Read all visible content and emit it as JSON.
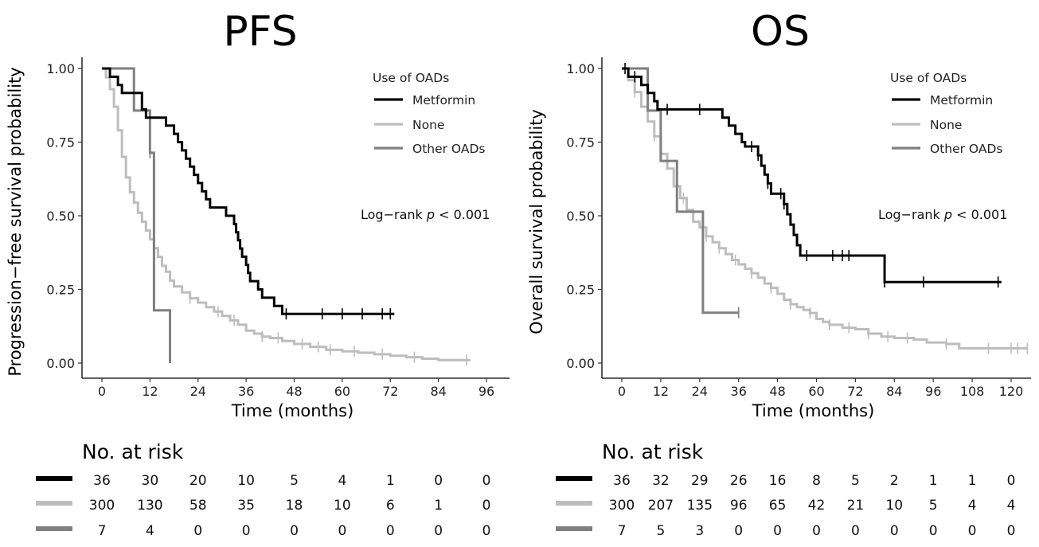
{
  "chart_data": [
    {
      "type": "line",
      "title": "PFS",
      "xlabel": "Time (months)",
      "ylabel": "Progression−free survival probability",
      "xlim": [
        0,
        96
      ],
      "ylim": [
        0,
        1
      ],
      "x_ticks": [
        0,
        12,
        24,
        36,
        48,
        60,
        72,
        84,
        96
      ],
      "x_tick_labels": [
        "0",
        "12",
        "24",
        "36",
        "48",
        "60",
        "72",
        "84",
        "96"
      ],
      "y_ticks": [
        0,
        0.25,
        0.5,
        0.75,
        1
      ],
      "y_tick_labels": [
        "0.00",
        "0.25",
        "0.50",
        "0.75",
        "1.00"
      ],
      "grid": false,
      "legend": {
        "title": "Use of OADs",
        "position": "top-right",
        "entries": [
          "Metformin",
          "None",
          "Other OADs"
        ]
      },
      "annotation_prefix": "Log−rank ",
      "annotation_p": "p",
      "annotation_suffix": " < 0.001",
      "series": [
        {
          "name": "Metformin",
          "color": "#000000",
          "points": [
            [
              0,
              1.0
            ],
            [
              2,
              0.972
            ],
            [
              4,
              0.944
            ],
            [
              5,
              0.917
            ],
            [
              10,
              0.861
            ],
            [
              11,
              0.833
            ],
            [
              16,
              0.806
            ],
            [
              18,
              0.778
            ],
            [
              19,
              0.75
            ],
            [
              20,
              0.722
            ],
            [
              21,
              0.694
            ],
            [
              22,
              0.667
            ],
            [
              23,
              0.639
            ],
            [
              24,
              0.611
            ],
            [
              25,
              0.583
            ],
            [
              26,
              0.556
            ],
            [
              27,
              0.528
            ],
            [
              31,
              0.5
            ],
            [
              33,
              0.472
            ],
            [
              33.5,
              0.444
            ],
            [
              34,
              0.417
            ],
            [
              34.5,
              0.389
            ],
            [
              35,
              0.361
            ],
            [
              36,
              0.333
            ],
            [
              36.5,
              0.306
            ],
            [
              37,
              0.278
            ],
            [
              39,
              0.25
            ],
            [
              40,
              0.222
            ],
            [
              43,
              0.194
            ],
            [
              45,
              0.167
            ],
            [
              73,
              0.167
            ]
          ],
          "censor_x": [
            46,
            55,
            60,
            65,
            70,
            72
          ]
        },
        {
          "name": "None",
          "color": "#bdbdbd",
          "points": [
            [
              0,
              1.0
            ],
            [
              1,
              0.97
            ],
            [
              2,
              0.93
            ],
            [
              3,
              0.87
            ],
            [
              4,
              0.79
            ],
            [
              5,
              0.7
            ],
            [
              6,
              0.63
            ],
            [
              7,
              0.58
            ],
            [
              8,
              0.545
            ],
            [
              9,
              0.51
            ],
            [
              10,
              0.48
            ],
            [
              11,
              0.45
            ],
            [
              12,
              0.42
            ],
            [
              13,
              0.39
            ],
            [
              14,
              0.36
            ],
            [
              15,
              0.33
            ],
            [
              16,
              0.31
            ],
            [
              17,
              0.28
            ],
            [
              18,
              0.26
            ],
            [
              20,
              0.24
            ],
            [
              22,
              0.22
            ],
            [
              24,
              0.205
            ],
            [
              26,
              0.19
            ],
            [
              28,
              0.175
            ],
            [
              30,
              0.16
            ],
            [
              32,
              0.145
            ],
            [
              34,
              0.13
            ],
            [
              36,
              0.11
            ],
            [
              38,
              0.1
            ],
            [
              40,
              0.09
            ],
            [
              42,
              0.085
            ],
            [
              45,
              0.075
            ],
            [
              48,
              0.065
            ],
            [
              52,
              0.055
            ],
            [
              56,
              0.045
            ],
            [
              60,
              0.04
            ],
            [
              64,
              0.035
            ],
            [
              68,
              0.03
            ],
            [
              72,
              0.025
            ],
            [
              76,
              0.02
            ],
            [
              80,
              0.015
            ],
            [
              84,
              0.01
            ],
            [
              92,
              0.01
            ]
          ],
          "censor_x": [
            22,
            29,
            33,
            40,
            44,
            50,
            54,
            57,
            63,
            70,
            78,
            91
          ]
        },
        {
          "name": "Other OADs",
          "color": "#7f7f7f",
          "points": [
            [
              0,
              1.0
            ],
            [
              8,
              1.0
            ],
            [
              8,
              0.857
            ],
            [
              12,
              0.857
            ],
            [
              12,
              0.714
            ],
            [
              13,
              0.714
            ],
            [
              13,
              0.179
            ],
            [
              17,
              0.179
            ],
            [
              17,
              0.0
            ]
          ],
          "censor_x": [
            12
          ]
        }
      ],
      "risk_table": {
        "title": "No. at risk",
        "times": [
          0,
          12,
          24,
          36,
          48,
          60,
          72,
          84,
          96
        ],
        "rows": [
          {
            "name": "Metformin",
            "color": "#000000",
            "values": [
              36,
              30,
              20,
              10,
              5,
              4,
              1,
              0,
              0
            ]
          },
          {
            "name": "None",
            "color": "#bdbdbd",
            "values": [
              300,
              130,
              58,
              35,
              18,
              10,
              6,
              1,
              0
            ]
          },
          {
            "name": "Other OADs",
            "color": "#7f7f7f",
            "values": [
              7,
              4,
              0,
              0,
              0,
              0,
              0,
              0,
              0
            ]
          }
        ]
      }
    },
    {
      "type": "line",
      "title": "OS",
      "xlabel": "Time (months)",
      "ylabel": "Overall survival probability",
      "xlim": [
        0,
        120
      ],
      "ylim": [
        0,
        1
      ],
      "x_ticks": [
        0,
        12,
        24,
        36,
        48,
        60,
        72,
        84,
        96,
        108,
        120
      ],
      "x_tick_labels": [
        "0",
        "12",
        "24",
        "36",
        "48",
        "60",
        "72",
        "84",
        "96",
        "108",
        "120"
      ],
      "y_ticks": [
        0,
        0.25,
        0.5,
        0.75,
        1
      ],
      "y_tick_labels": [
        "0.00",
        "0.25",
        "0.50",
        "0.75",
        "1.00"
      ],
      "grid": false,
      "legend": {
        "title": "Use of OADs",
        "position": "top-right",
        "entries": [
          "Metformin",
          "None",
          "Other OADs"
        ]
      },
      "annotation_prefix": "Log−rank ",
      "annotation_p": "p",
      "annotation_suffix": " < 0.001",
      "series": [
        {
          "name": "Metformin",
          "color": "#000000",
          "points": [
            [
              0,
              1.0
            ],
            [
              2,
              0.972
            ],
            [
              6,
              0.944
            ],
            [
              8,
              0.917
            ],
            [
              10,
              0.889
            ],
            [
              11,
              0.861
            ],
            [
              30,
              0.861
            ],
            [
              31,
              0.833
            ],
            [
              33,
              0.806
            ],
            [
              35,
              0.778
            ],
            [
              37,
              0.75
            ],
            [
              38,
              0.735
            ],
            [
              42,
              0.705
            ],
            [
              43,
              0.67
            ],
            [
              44,
              0.64
            ],
            [
              45,
              0.61
            ],
            [
              46,
              0.575
            ],
            [
              50,
              0.54
            ],
            [
              51,
              0.505
            ],
            [
              52,
              0.47
            ],
            [
              53,
              0.435
            ],
            [
              54,
              0.4
            ],
            [
              55,
              0.365
            ],
            [
              80,
              0.365
            ],
            [
              81,
              0.275
            ],
            [
              117,
              0.275
            ]
          ],
          "censor_x": [
            1,
            4,
            14,
            24,
            40,
            42,
            45,
            49,
            50,
            57,
            65,
            68,
            70,
            81,
            93,
            116
          ]
        },
        {
          "name": "None",
          "color": "#bdbdbd",
          "points": [
            [
              0,
              1.0
            ],
            [
              2,
              0.96
            ],
            [
              4,
              0.92
            ],
            [
              6,
              0.87
            ],
            [
              8,
              0.82
            ],
            [
              10,
              0.77
            ],
            [
              12,
              0.71
            ],
            [
              14,
              0.66
            ],
            [
              16,
              0.6
            ],
            [
              18,
              0.56
            ],
            [
              20,
              0.52
            ],
            [
              22,
              0.48
            ],
            [
              24,
              0.46
            ],
            [
              26,
              0.43
            ],
            [
              28,
              0.41
            ],
            [
              30,
              0.39
            ],
            [
              32,
              0.37
            ],
            [
              34,
              0.35
            ],
            [
              36,
              0.335
            ],
            [
              38,
              0.32
            ],
            [
              40,
              0.305
            ],
            [
              42,
              0.29
            ],
            [
              44,
              0.27
            ],
            [
              46,
              0.255
            ],
            [
              48,
              0.235
            ],
            [
              50,
              0.215
            ],
            [
              52,
              0.2
            ],
            [
              54,
              0.19
            ],
            [
              56,
              0.18
            ],
            [
              58,
              0.17
            ],
            [
              60,
              0.15
            ],
            [
              62,
              0.14
            ],
            [
              64,
              0.13
            ],
            [
              68,
              0.12
            ],
            [
              72,
              0.115
            ],
            [
              76,
              0.1
            ],
            [
              80,
              0.09
            ],
            [
              84,
              0.085
            ],
            [
              90,
              0.08
            ],
            [
              94,
              0.07
            ],
            [
              100,
              0.065
            ],
            [
              104,
              0.05
            ],
            [
              108,
              0.05
            ],
            [
              125,
              0.05
            ]
          ],
          "censor_x": [
            4,
            10,
            19,
            26,
            30,
            35,
            40,
            46,
            52,
            58,
            64,
            70,
            76,
            82,
            88,
            100,
            113,
            120,
            122,
            125
          ]
        },
        {
          "name": "Other OADs",
          "color": "#7f7f7f",
          "points": [
            [
              0,
              1.0
            ],
            [
              8,
              1.0
            ],
            [
              8,
              0.857
            ],
            [
              12,
              0.857
            ],
            [
              12,
              0.686
            ],
            [
              17,
              0.686
            ],
            [
              17,
              0.514
            ],
            [
              25,
              0.514
            ],
            [
              25,
              0.171
            ],
            [
              36,
              0.171
            ]
          ],
          "censor_x": [
            36
          ]
        }
      ],
      "risk_table": {
        "title": "No. at risk",
        "times": [
          0,
          12,
          24,
          36,
          48,
          60,
          72,
          84,
          96,
          108,
          120
        ],
        "rows": [
          {
            "name": "Metformin",
            "color": "#000000",
            "values": [
              36,
              32,
              29,
              26,
              16,
              8,
              5,
              2,
              1,
              1,
              0
            ]
          },
          {
            "name": "None",
            "color": "#bdbdbd",
            "values": [
              300,
              207,
              135,
              96,
              65,
              42,
              21,
              10,
              5,
              4,
              4
            ]
          },
          {
            "name": "Other OADs",
            "color": "#7f7f7f",
            "values": [
              7,
              5,
              3,
              0,
              0,
              0,
              0,
              0,
              0,
              0,
              0
            ]
          }
        ]
      }
    }
  ]
}
